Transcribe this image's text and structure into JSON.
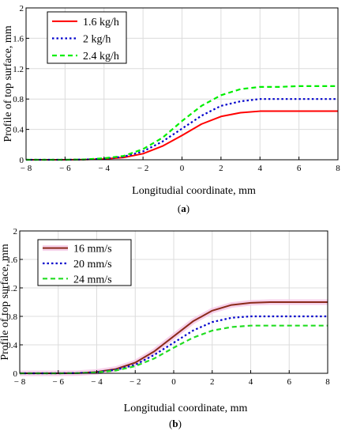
{
  "chart_data": [
    {
      "type": "line",
      "panel_label_pre": "(",
      "panel_label_bold": "a",
      "panel_label_post": ")",
      "xlabel": "Longitudial coordinate, mm",
      "ylabel": "Profile of top surface, mm",
      "xlim": [
        -8,
        8
      ],
      "ylim": [
        0,
        2
      ],
      "xticks": [
        -8,
        -6,
        -4,
        -2,
        0,
        2,
        4,
        6,
        8
      ],
      "xtick_labels": [
        "− 8",
        "− 6",
        "− 4",
        "− 2",
        "0",
        "2",
        "4",
        "6",
        "8"
      ],
      "yticks": [
        0,
        0.4,
        0.8,
        1.2,
        1.6,
        2
      ],
      "ytick_labels": [
        "0",
        "0.4",
        "0.8",
        "1.2",
        "1.6",
        "2"
      ],
      "grid": true,
      "legend_position": "top-left",
      "x": [
        -8,
        -7,
        -6,
        -5,
        -4,
        -3,
        -2,
        -1,
        0,
        1,
        2,
        3,
        4,
        5,
        6,
        7,
        8
      ],
      "series": [
        {
          "name": "1.6 kg/h",
          "color": "#ff0000",
          "style": "solid",
          "values": [
            0,
            0,
            0,
            0.002,
            0.01,
            0.03,
            0.08,
            0.18,
            0.32,
            0.47,
            0.57,
            0.62,
            0.64,
            0.64,
            0.64,
            0.64,
            0.64
          ]
        },
        {
          "name": "2 kg/h",
          "color": "#0000cc",
          "style": "dotted",
          "values": [
            0,
            0,
            0,
            0.003,
            0.015,
            0.04,
            0.11,
            0.24,
            0.41,
            0.58,
            0.71,
            0.77,
            0.8,
            0.8,
            0.8,
            0.8,
            0.8
          ]
        },
        {
          "name": "2.4 kg/h",
          "color": "#00ee00",
          "style": "dashed",
          "values": [
            0,
            0,
            0,
            0.004,
            0.02,
            0.05,
            0.14,
            0.29,
            0.51,
            0.71,
            0.85,
            0.93,
            0.96,
            0.96,
            0.97,
            0.97,
            0.97
          ]
        }
      ]
    },
    {
      "type": "line",
      "panel_label_pre": "(",
      "panel_label_bold": "b",
      "panel_label_post": ")",
      "xlabel": "Longitudial coordinate, mm",
      "ylabel": "Profile of top surface, mm",
      "xlim": [
        -8,
        8
      ],
      "ylim": [
        0,
        2
      ],
      "xticks": [
        -8,
        -6,
        -4,
        -2,
        0,
        2,
        4,
        6,
        8
      ],
      "xtick_labels": [
        "− 8",
        "− 6",
        "− 4",
        "− 2",
        "0",
        "2",
        "4",
        "6",
        "8"
      ],
      "yticks": [
        0,
        0.4,
        0.8,
        1.2,
        1.6,
        2
      ],
      "ytick_labels": [
        "0",
        "0.4",
        "0.8",
        "1.2",
        "1.6",
        "2"
      ],
      "grid": true,
      "legend_position": "top-left",
      "x": [
        -8,
        -7,
        -6,
        -5,
        -4,
        -3,
        -2,
        -1,
        0,
        1,
        2,
        3,
        4,
        5,
        6,
        7,
        8
      ],
      "series": [
        {
          "name": "16 mm/s",
          "color": "#8b2a1a",
          "style": "solid",
          "halo": "#f5c6e6",
          "values": [
            0,
            0,
            0,
            0.003,
            0.02,
            0.06,
            0.15,
            0.31,
            0.52,
            0.73,
            0.88,
            0.96,
            0.99,
            1.0,
            1.0,
            1.0,
            1.0
          ]
        },
        {
          "name": "20 mm/s",
          "color": "#0000cc",
          "style": "dotted",
          "values": [
            0,
            0,
            0,
            0.003,
            0.015,
            0.05,
            0.12,
            0.26,
            0.43,
            0.6,
            0.72,
            0.78,
            0.8,
            0.8,
            0.8,
            0.8,
            0.8
          ]
        },
        {
          "name": "24 mm/s",
          "color": "#22dd22",
          "style": "dashed",
          "values": [
            0,
            0,
            0,
            0.002,
            0.012,
            0.04,
            0.1,
            0.21,
            0.36,
            0.5,
            0.6,
            0.65,
            0.67,
            0.67,
            0.67,
            0.67,
            0.67
          ]
        }
      ]
    }
  ]
}
